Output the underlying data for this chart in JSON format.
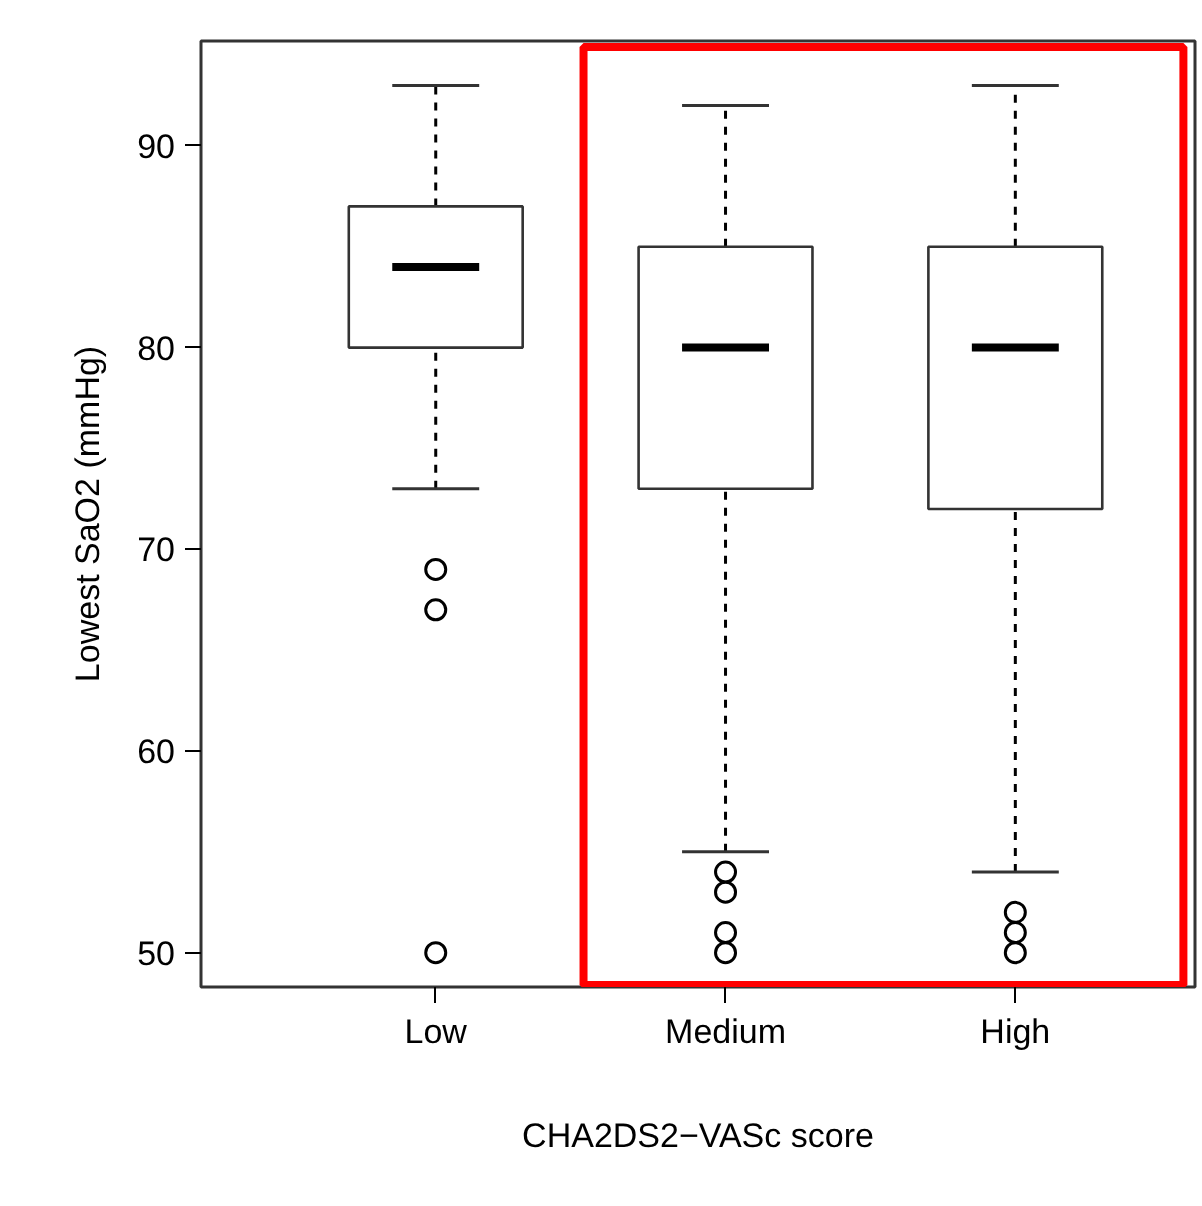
{
  "chart_data": {
    "type": "box",
    "xlabel": "CHA2DS2−VASc score",
    "ylabel": "Lowest SaO2 (mmHg)",
    "categories": [
      "Low",
      "Medium",
      "High"
    ],
    "boxes": [
      {
        "low": 73,
        "q1": 80,
        "median": 84,
        "q3": 87,
        "high": 93,
        "outliers": [
          69,
          67,
          50
        ]
      },
      {
        "low": 55,
        "q1": 73,
        "median": 80,
        "q3": 85,
        "high": 92,
        "outliers": [
          54,
          53,
          51,
          50
        ]
      },
      {
        "low": 54,
        "q1": 72,
        "median": 80,
        "q3": 85,
        "high": 93,
        "outliers": [
          52,
          51,
          50
        ]
      }
    ],
    "ylim": [
      48.3,
      95.2
    ],
    "yticks": [
      50,
      60,
      70,
      80,
      90
    ],
    "grid": false
  }
}
